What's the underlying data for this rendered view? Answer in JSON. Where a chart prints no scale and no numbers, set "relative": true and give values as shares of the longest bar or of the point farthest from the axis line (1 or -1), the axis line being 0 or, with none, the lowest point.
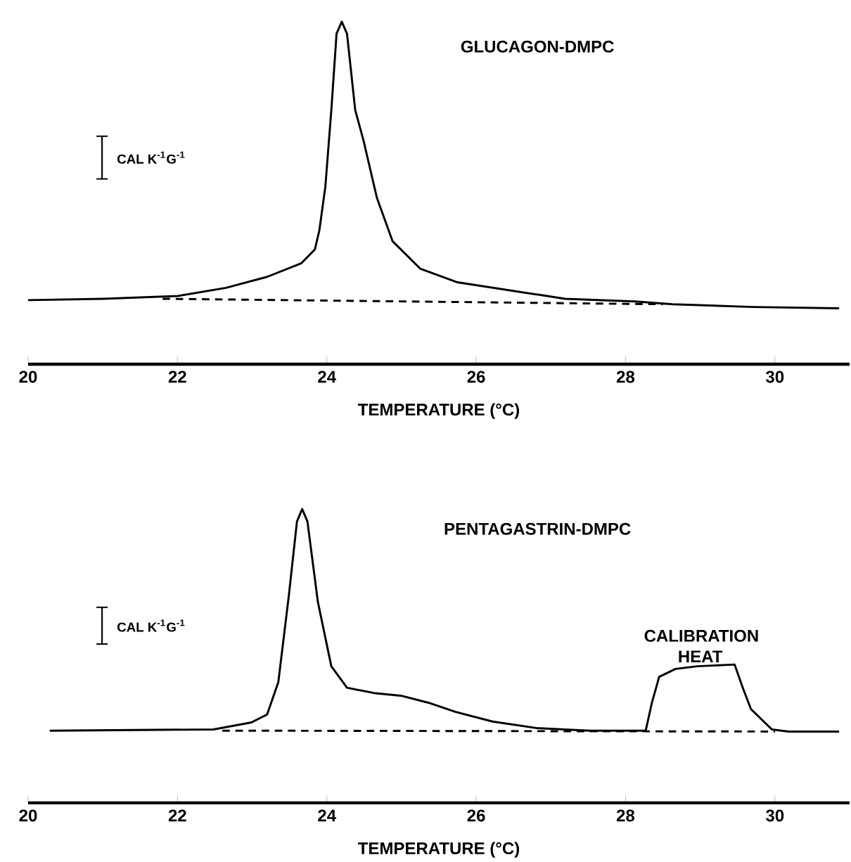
{
  "chart_data": [
    {
      "type": "line",
      "title": "GLUCAGON-DMPC",
      "xlabel": "TEMPERATURE (°C)",
      "relative": true,
      "xlim": [
        20,
        31
      ],
      "xticks": [
        20,
        22,
        24,
        26,
        28,
        30
      ],
      "annotations": [
        "CAL K$^{-1}$G$^{-1}$"
      ],
      "series": [
        {
          "color": "#000000",
          "line_style": "solid",
          "x": [
            20,
            21.0,
            22.0,
            22.65,
            23.2,
            23.66,
            23.84,
            23.9,
            23.98,
            24.06,
            24.13,
            24.2,
            24.27,
            24.38,
            24.49,
            24.67,
            24.88,
            25.25,
            25.75,
            26.47,
            27.19,
            28.13,
            28.63,
            29.71,
            30.86
          ],
          "values": [
            0.187,
            0.191,
            0.199,
            0.223,
            0.255,
            0.295,
            0.335,
            0.391,
            0.518,
            0.742,
            0.965,
            1,
            0.965,
            0.742,
            0.654,
            0.486,
            0.359,
            0.279,
            0.239,
            0.215,
            0.191,
            0.183,
            0.175,
            0.167,
            0.163
          ]
        },
        {
          "color": "#000000",
          "line_style": "dashed",
          "x": [
            21.8,
            28.5
          ],
          "values": [
            0.191,
            0.175
          ]
        }
      ]
    },
    {
      "type": "line",
      "title": "PENTAGASTRIN-DMPC",
      "xlabel": "TEMPERATURE (°C)",
      "relative": true,
      "xlim": [
        20,
        31
      ],
      "xticks": [
        20,
        22,
        24,
        26,
        28,
        30
      ],
      "annotations": [
        "CAL K$^{-1}$G$^{-1}$",
        {
          "text": "CALIBRATION HEAT",
          "x": 29,
          "y": 0.471
        }
      ],
      "series": [
        {
          "color": "#000000",
          "line_style": "solid",
          "x": [
            20.29,
            22.48,
            22.99,
            23.2,
            23.35,
            23.49,
            23.6,
            23.67,
            23.74,
            23.88,
            24.06,
            24.27,
            24.63,
            24.99,
            25.36,
            25.72,
            26.22,
            26.8,
            27.52,
            28.27,
            28.35,
            28.45,
            28.67,
            28.96,
            29.46,
            29.57,
            29.68,
            29.96,
            30.18,
            30.86
          ],
          "values": [
            0.246,
            0.25,
            0.274,
            0.301,
            0.411,
            0.703,
            0.958,
            1,
            0.958,
            0.684,
            0.465,
            0.392,
            0.374,
            0.365,
            0.341,
            0.31,
            0.277,
            0.255,
            0.246,
            0.246,
            0.338,
            0.429,
            0.456,
            0.465,
            0.471,
            0.392,
            0.319,
            0.25,
            0.243,
            0.243
          ]
        },
        {
          "color": "#000000",
          "line_style": "dashed",
          "x": [
            22.6,
            30.0
          ],
          "values": [
            0.246,
            0.243
          ]
        }
      ]
    }
  ]
}
